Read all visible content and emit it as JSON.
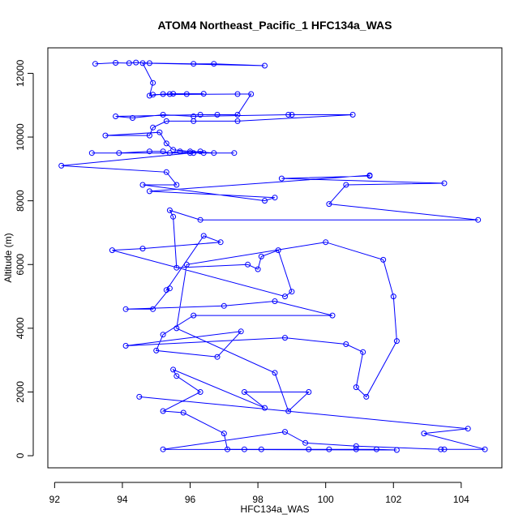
{
  "chart_data": {
    "type": "scatter",
    "title": "ATOM4 Northeast_Pacific_1 HFC134a_WAS",
    "xlabel": "HFC134a_WAS",
    "ylabel": "Altitude (m)",
    "xlim": [
      91.8,
      105.2
    ],
    "ylim": [
      -380,
      12800
    ],
    "x_ticks": [
      92,
      94,
      96,
      98,
      100,
      102,
      104
    ],
    "y_ticks": [
      0,
      2000,
      4000,
      6000,
      8000,
      10000,
      12000
    ],
    "grid": false,
    "style": {
      "color": "#0000ff",
      "marker": "open-circle",
      "connected": true
    },
    "series": [
      {
        "points": [
          [
            93.2,
            12300
          ],
          [
            93.8,
            12330
          ],
          [
            94.2,
            12320
          ],
          [
            94.4,
            12340
          ],
          [
            94.8,
            12320
          ],
          [
            96.1,
            12300
          ],
          [
            96.7,
            12300
          ],
          [
            98.2,
            12240
          ],
          [
            94.6,
            12320
          ],
          [
            94.9,
            11700
          ],
          [
            94.8,
            11300
          ],
          [
            95.2,
            11350
          ],
          [
            95.5,
            11360
          ],
          [
            96.4,
            11360
          ],
          [
            95.9,
            11350
          ],
          [
            95.4,
            11350
          ],
          [
            94.9,
            11330
          ],
          [
            97.4,
            11350
          ],
          [
            97.8,
            11350
          ],
          [
            97.4,
            10700
          ],
          [
            96.8,
            10700
          ],
          [
            96.3,
            10700
          ],
          [
            93.8,
            10650
          ],
          [
            94.3,
            10600
          ],
          [
            95.2,
            10700
          ],
          [
            96.1,
            10650
          ],
          [
            98.9,
            10700
          ],
          [
            99.0,
            10700
          ],
          [
            100.8,
            10700
          ],
          [
            97.4,
            10500
          ],
          [
            96.1,
            10500
          ],
          [
            95.3,
            10500
          ],
          [
            94.9,
            10300
          ],
          [
            94.8,
            10050
          ],
          [
            93.5,
            10050
          ],
          [
            95.1,
            10150
          ],
          [
            95.3,
            9800
          ],
          [
            95.5,
            9600
          ],
          [
            96.0,
            9550
          ],
          [
            96.7,
            9500
          ],
          [
            97.3,
            9500
          ],
          [
            96.1,
            9500
          ],
          [
            95.7,
            9550
          ],
          [
            95.4,
            9500
          ],
          [
            95.2,
            9550
          ],
          [
            94.8,
            9550
          ],
          [
            93.9,
            9500
          ],
          [
            93.1,
            9500
          ],
          [
            96.4,
            9500
          ],
          [
            96.3,
            9550
          ],
          [
            96.0,
            9500
          ],
          [
            92.2,
            9100
          ],
          [
            95.3,
            8900
          ],
          [
            95.6,
            8500
          ],
          [
            94.6,
            8500
          ],
          [
            98.2,
            8000
          ],
          [
            98.5,
            8100
          ],
          [
            94.8,
            8300
          ],
          [
            101.3,
            8800
          ],
          [
            101.3,
            8780
          ],
          [
            98.7,
            8700
          ],
          [
            103.5,
            8550
          ],
          [
            100.6,
            8500
          ],
          [
            100.1,
            7900
          ],
          [
            104.5,
            7400
          ],
          [
            96.3,
            7400
          ],
          [
            95.4,
            7700
          ],
          [
            95.5,
            7500
          ],
          [
            95.6,
            5900
          ],
          [
            97.7,
            6000
          ],
          [
            98.0,
            5850
          ],
          [
            98.1,
            6250
          ],
          [
            98.6,
            6450
          ],
          [
            99.0,
            5150
          ],
          [
            98.8,
            5000
          ],
          [
            93.7,
            6450
          ],
          [
            94.6,
            6500
          ],
          [
            96.9,
            6700
          ],
          [
            96.4,
            6900
          ],
          [
            95.3,
            5200
          ],
          [
            95.4,
            5250
          ],
          [
            94.9,
            4600
          ],
          [
            94.1,
            4600
          ],
          [
            97.0,
            4700
          ],
          [
            98.5,
            4850
          ],
          [
            100.2,
            4400
          ],
          [
            96.1,
            4400
          ],
          [
            95.2,
            3800
          ],
          [
            95.0,
            3300
          ],
          [
            96.8,
            3100
          ],
          [
            97.5,
            3900
          ],
          [
            94.1,
            3450
          ],
          [
            98.8,
            3700
          ],
          [
            100.6,
            3500
          ],
          [
            101.1,
            3250
          ],
          [
            100.9,
            2150
          ],
          [
            101.2,
            1850
          ],
          [
            102.1,
            3600
          ],
          [
            102.0,
            5000
          ],
          [
            101.7,
            6150
          ],
          [
            100.0,
            6700
          ],
          [
            95.9,
            6000
          ],
          [
            95.6,
            4000
          ],
          [
            98.5,
            2600
          ],
          [
            98.9,
            1400
          ],
          [
            99.5,
            2000
          ],
          [
            97.6,
            2000
          ],
          [
            98.2,
            1500
          ],
          [
            95.5,
            2700
          ],
          [
            95.6,
            2500
          ],
          [
            96.3,
            2000
          ],
          [
            95.2,
            1400
          ],
          [
            95.8,
            1350
          ],
          [
            97.0,
            700
          ],
          [
            97.1,
            200
          ],
          [
            97.6,
            200
          ],
          [
            98.1,
            200
          ],
          [
            99.5,
            200
          ],
          [
            100.1,
            200
          ],
          [
            100.9,
            200
          ],
          [
            101.5,
            200
          ],
          [
            102.1,
            180
          ],
          [
            95.2,
            200
          ],
          [
            98.8,
            750
          ],
          [
            99.4,
            400
          ],
          [
            100.9,
            300
          ],
          [
            103.4,
            200
          ],
          [
            103.5,
            200
          ],
          [
            104.7,
            200
          ],
          [
            102.9,
            700
          ],
          [
            104.2,
            850
          ],
          [
            94.5,
            1850
          ]
        ]
      }
    ]
  }
}
